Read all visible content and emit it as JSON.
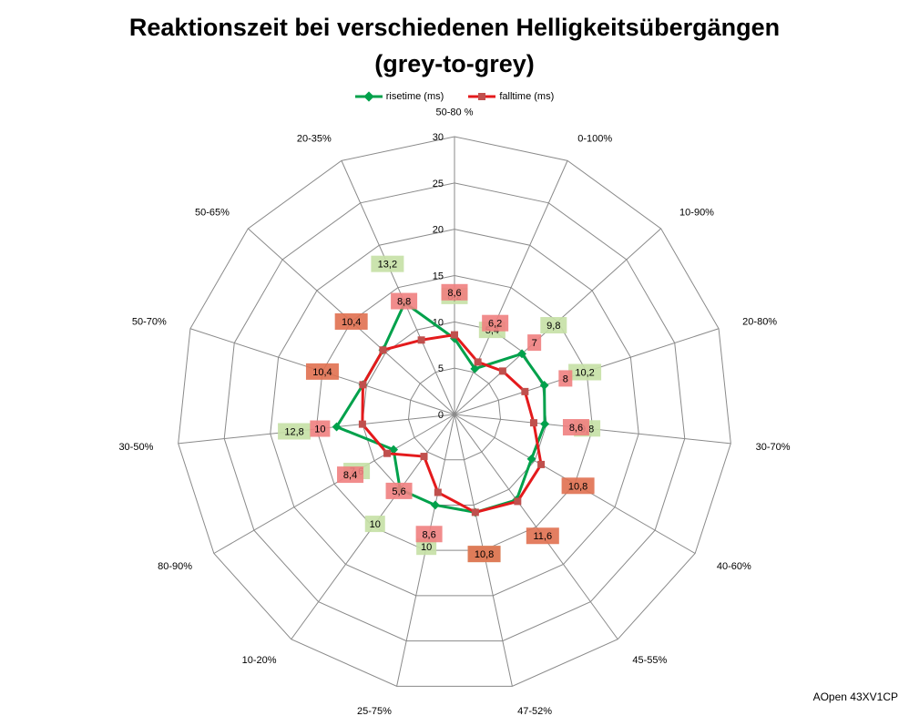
{
  "title_lines": [
    "Reaktionszeit bei verschiedenen Helligkeitsübergängen",
    "(grey-to-grey)"
  ],
  "footnote": "AOpen 43XV1CP",
  "colors": {
    "rise": "#00a14b",
    "fall": "#e41a1c",
    "rise_marker": "#00a14b",
    "fall_marker": "#c0504d",
    "grid": "#8a8a8a",
    "rise_label_bg": "#c5e0a5",
    "fall_label_bg": "#f08080",
    "fall_label_bg_dark": "#e07050"
  },
  "chart_data": {
    "type": "radar",
    "title": "Reaktionszeit bei verschiedenen Helligkeitsübergängen (grey-to-grey)",
    "categories": [
      "50-80 %",
      "0-100%",
      "10-90%",
      "20-80%",
      "30-70%",
      "40-60%",
      "45-55%",
      "47-52%",
      "25-75%",
      "10-20%",
      "80-90%",
      "30-50%",
      "50-70%",
      "50-65%",
      "20-35%"
    ],
    "rlim": [
      0,
      30
    ],
    "rticks": [
      "0",
      "5",
      "10",
      "15",
      "20",
      "25",
      "30"
    ],
    "legend_position": "top",
    "grid": true,
    "series": [
      {
        "name": "risetime (ms)",
        "values": [
          8.2,
          5.4,
          9.8,
          10.2,
          9.8,
          9.6,
          11.4,
          10.8,
          10,
          10,
          7.6,
          12.8,
          10.4,
          10.4,
          13.2
        ],
        "labels": [
          "8,2",
          "5,4",
          "9,8",
          "10,2",
          "9,8",
          "",
          "",
          "10,8",
          "10",
          "10",
          "7,6",
          "12,8",
          "",
          "",
          "13,2"
        ]
      },
      {
        "name": "falltime (ms)",
        "values": [
          8.6,
          6.2,
          7,
          8,
          8.6,
          10.8,
          11.6,
          10.8,
          8.6,
          5.6,
          8.4,
          10,
          10.4,
          10.4,
          8.8
        ],
        "labels": [
          "8,6",
          "6,2",
          "7",
          "8",
          "8,6",
          "10,8",
          "11,6",
          "10,8",
          "8,6",
          "5,6",
          "8,4",
          "10",
          "10,4",
          "10,4",
          "8,8"
        ]
      }
    ]
  }
}
